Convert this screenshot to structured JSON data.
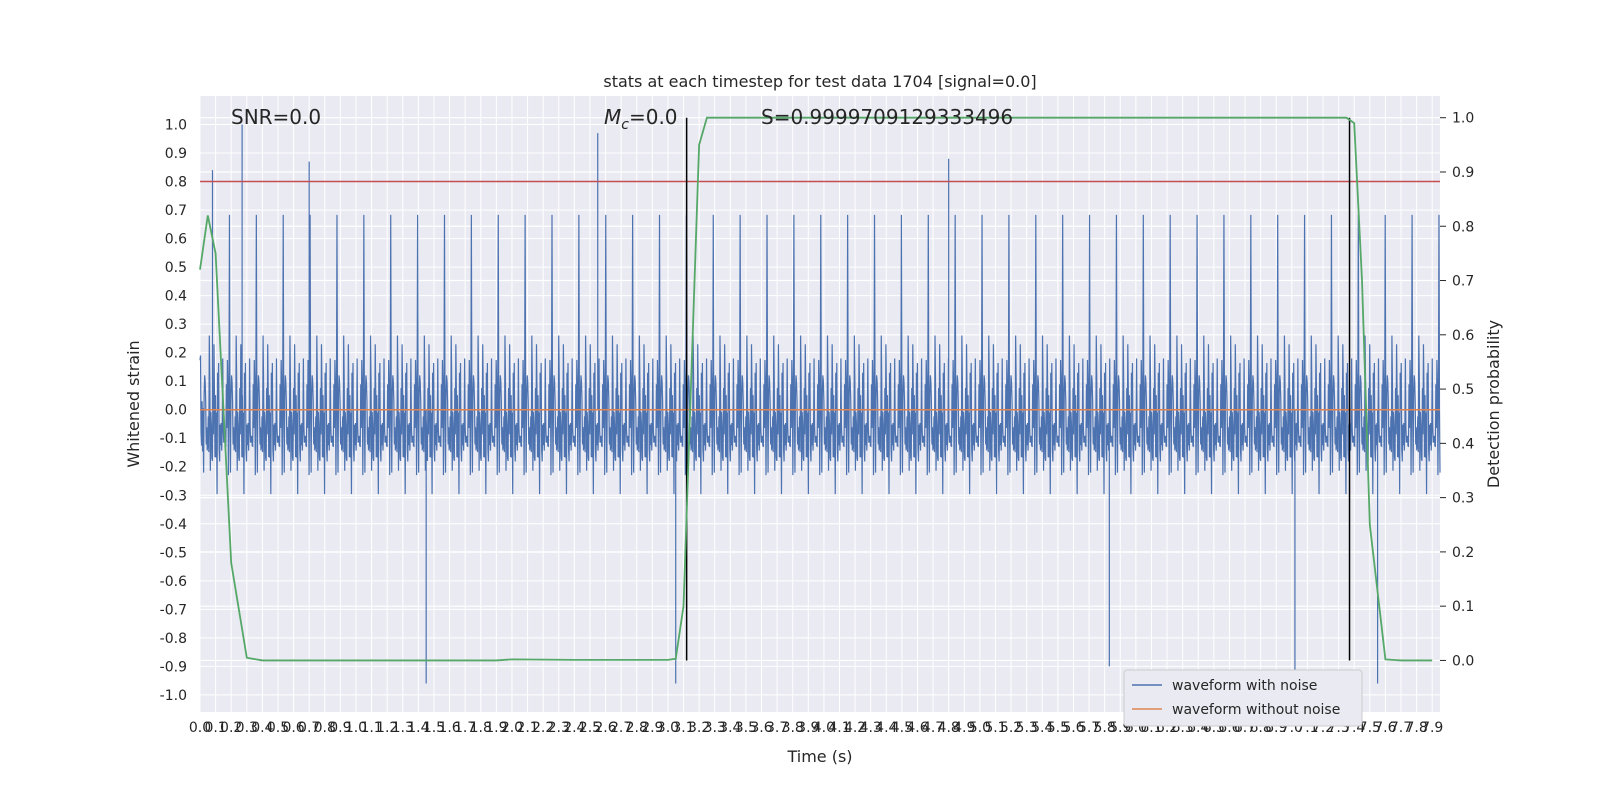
{
  "chart_data": {
    "type": "line",
    "title": "stats at each timestep for test data 1704 [signal=0.0]",
    "xlabel": "Time (s)",
    "ylabel_left": "Whitened strain",
    "ylabel_right": "Detection probability",
    "xlim": [
      0.0,
      7.95
    ],
    "ylim_left": [
      -1.06,
      1.1
    ],
    "ylim_right": [
      -0.095,
      1.04
    ],
    "x_ticks": [
      "0.0",
      "0.1",
      "0.2",
      "0.3",
      "0.4",
      "0.5",
      "0.6",
      "0.7",
      "0.8",
      "0.9",
      "1.0",
      "1.1",
      "1.2",
      "1.3",
      "1.4",
      "1.5",
      "1.6",
      "1.7",
      "1.8",
      "1.9",
      "2.0",
      "2.1",
      "2.2",
      "2.3",
      "2.4",
      "2.5",
      "2.6",
      "2.7",
      "2.8",
      "2.9",
      "3.0",
      "3.1",
      "3.2",
      "3.3",
      "3.4",
      "3.5",
      "3.6",
      "3.7",
      "3.8",
      "3.9",
      "4.0",
      "4.1",
      "4.2",
      "4.3",
      "4.4",
      "4.5",
      "4.6",
      "4.7",
      "4.8",
      "4.9",
      "5.0",
      "5.1",
      "5.2",
      "5.3",
      "5.4",
      "5.5",
      "5.6",
      "5.7",
      "5.8",
      "5.9",
      "6.0",
      "6.1",
      "6.2",
      "6.3",
      "6.4",
      "6.5",
      "6.6",
      "6.7",
      "6.8",
      "6.9",
      "7.0",
      "7.1",
      "7.2",
      "7.3",
      "7.4",
      "7.5",
      "7.6",
      "7.7",
      "7.8",
      "7.9"
    ],
    "y_ticks_left": [
      "-1.0",
      "-0.9",
      "-0.8",
      "-0.7",
      "-0.6",
      "-0.5",
      "-0.4",
      "-0.3",
      "-0.2",
      "-0.1",
      "0.0",
      "0.1",
      "0.2",
      "0.3",
      "0.4",
      "0.5",
      "0.6",
      "0.7",
      "0.8",
      "0.9",
      "1.0"
    ],
    "y_ticks_right": [
      "0.0",
      "0.1",
      "0.2",
      "0.3",
      "0.4",
      "0.5",
      "0.6",
      "0.7",
      "0.8",
      "0.9",
      "1.0"
    ],
    "grid": true,
    "series": [
      {
        "name": "waveform with noise",
        "color": "#4c72b0",
        "axis": "left",
        "note_visual": "dense whitened noise, amplitude ~0.4, spikes up to 1.0 and down to -0.97"
      },
      {
        "name": "waveform without noise",
        "color": "#dd8452",
        "axis": "left",
        "values_const": 0.0
      },
      {
        "name": "",
        "color": "#55a868",
        "axis": "right",
        "x": [
          0.0,
          0.05,
          0.1,
          0.2,
          0.3,
          0.4,
          0.8,
          1.6,
          1.9,
          2.0,
          2.4,
          3.0,
          3.05,
          3.1,
          3.2,
          3.25,
          3.3,
          4.0,
          5.0,
          6.0,
          7.0,
          7.25,
          7.35,
          7.4,
          7.45,
          7.5,
          7.6,
          7.7,
          7.9
        ],
        "values": [
          0.72,
          0.82,
          0.75,
          0.18,
          0.005,
          0.0,
          0.0,
          0.0,
          0.0,
          0.002,
          0.001,
          0.001,
          0.003,
          0.1,
          0.95,
          1.0,
          1.0,
          1.0,
          1.0,
          1.0,
          1.0,
          1.0,
          1.0,
          0.99,
          0.7,
          0.25,
          0.002,
          0.0,
          0.0
        ]
      }
    ],
    "threshold_line": {
      "value": 0.8,
      "color": "#c44e52",
      "axis": "left"
    },
    "vertical_lines": [
      {
        "x": 3.12,
        "color": "#000000"
      },
      {
        "x": 7.37,
        "color": "#000000"
      }
    ],
    "annotations": {
      "snr": "SNR=0.0",
      "mc_symbol": "M",
      "mc_sub": "c",
      "mc_value": "=0.0",
      "s": "S=0.9999709129333496"
    },
    "legend": {
      "placement": "lower-right",
      "entries": [
        "waveform with noise",
        "waveform without noise"
      ]
    }
  }
}
